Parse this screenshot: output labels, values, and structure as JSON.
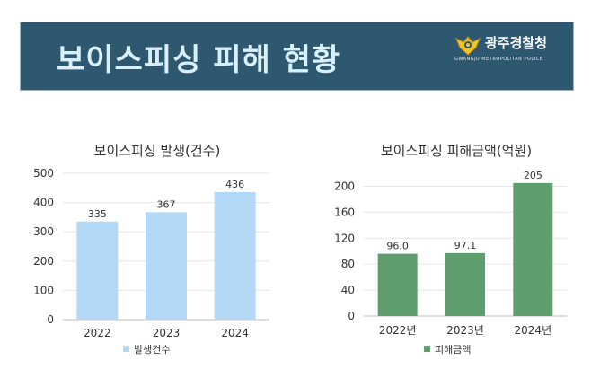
{
  "banner": {
    "title": "보이스피싱 피해 현황",
    "org_name": "광주경찰청",
    "org_sub": "GWANGJU METROPOLITAN POLICE",
    "background": "#2e5870"
  },
  "chart_data": [
    {
      "type": "bar",
      "title": "보이스피싱 발생(건수)",
      "categories": [
        "2022",
        "2023",
        "2024"
      ],
      "series": [
        {
          "name": "발생건수",
          "values": [
            335,
            367,
            436
          ],
          "labels": [
            "335",
            "367",
            "436"
          ],
          "color": "#b4d9f7"
        }
      ],
      "ylim": [
        0,
        500
      ],
      "yticks": [
        0,
        100,
        200,
        300,
        400,
        500
      ],
      "grid": true,
      "legend": "bottom"
    },
    {
      "type": "bar",
      "title": "보이스피싱 피해금액(억원)",
      "categories": [
        "2022년",
        "2023년",
        "2024년"
      ],
      "series": [
        {
          "name": "피해금액",
          "values": [
            96.0,
            97.1,
            205
          ],
          "labels": [
            "96.0",
            "97.1",
            "205"
          ],
          "color": "#5e9e6e"
        }
      ],
      "ylim": [
        0,
        220
      ],
      "yticks": [
        0,
        40,
        80,
        120,
        160,
        200
      ],
      "grid": true,
      "legend": "bottom"
    }
  ]
}
